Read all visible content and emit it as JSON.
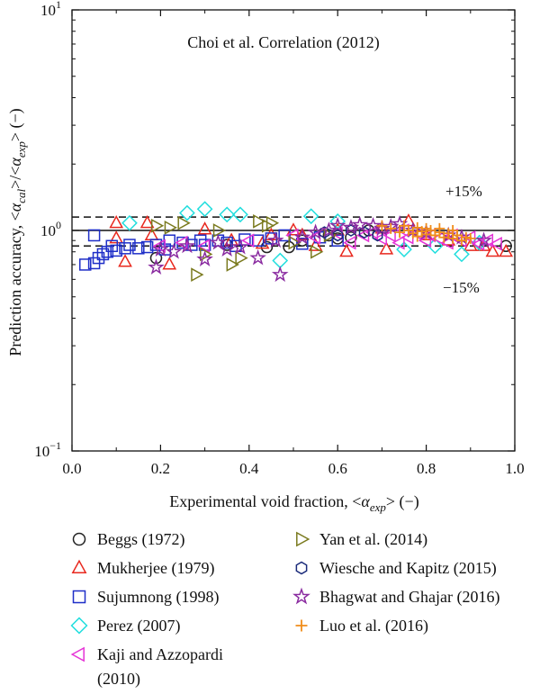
{
  "chart_data": {
    "type": "scatter",
    "title": "Choi et al. Correlation (2012)",
    "xlabel": {
      "main": "Experimental void fraction, <",
      "alpha": "α",
      "sub": "exp",
      "tail": "> (−)"
    },
    "ylabel": {
      "main": "Prediction accuracy, <",
      "alpha": "α",
      "sub1": "cal",
      "mid": ">/<",
      "sub2": "exp",
      "tail": "> (−)"
    },
    "x_range": [
      0,
      1
    ],
    "y_range": [
      0.1,
      10
    ],
    "y_scale": "log",
    "x_ticks": [
      "0.0",
      "0.2",
      "0.4",
      "0.6",
      "0.8",
      "1.0"
    ],
    "y_ticks": [
      {
        "base": "10",
        "exp": "−1",
        "value": 0.1
      },
      {
        "base": "10",
        "exp": "0",
        "value": 1
      },
      {
        "base": "10",
        "exp": "1",
        "value": 10
      }
    ],
    "reference_lines": [
      {
        "value": 1.0,
        "style": "solid"
      },
      {
        "value": 1.15,
        "style": "dashed",
        "label": "+15%"
      },
      {
        "value": 0.85,
        "style": "dashed",
        "label": "−15%"
      }
    ],
    "legend_placement": "below",
    "series": [
      {
        "name": "Beggs (1972)",
        "marker": "circle",
        "color": "#222222",
        "points": [
          [
            0.19,
            0.75
          ],
          [
            0.35,
            0.86
          ],
          [
            0.44,
            0.84
          ],
          [
            0.49,
            0.84
          ],
          [
            0.52,
            0.9
          ],
          [
            0.58,
            0.95
          ],
          [
            0.6,
            0.92
          ],
          [
            0.63,
            0.93
          ],
          [
            0.67,
            1.0
          ],
          [
            0.98,
            0.85
          ]
        ]
      },
      {
        "name": "Mukherjee (1979)",
        "marker": "triangle-up",
        "color": "#e8281e",
        "points": [
          [
            0.1,
            1.08
          ],
          [
            0.1,
            0.92
          ],
          [
            0.12,
            0.72
          ],
          [
            0.17,
            1.08
          ],
          [
            0.18,
            0.95
          ],
          [
            0.22,
            0.7
          ],
          [
            0.3,
            1.01
          ],
          [
            0.36,
            0.9
          ],
          [
            0.43,
            0.87
          ],
          [
            0.45,
            0.95
          ],
          [
            0.5,
            1.0
          ],
          [
            0.52,
            0.95
          ],
          [
            0.55,
            0.85
          ],
          [
            0.6,
            1.0
          ],
          [
            0.62,
            0.8
          ],
          [
            0.7,
            1.02
          ],
          [
            0.71,
            0.82
          ],
          [
            0.76,
            1.1
          ],
          [
            0.8,
            0.95
          ],
          [
            0.85,
            0.9
          ],
          [
            0.9,
            0.85
          ],
          [
            0.93,
            0.85
          ],
          [
            0.95,
            0.8
          ],
          [
            0.98,
            0.8
          ]
        ]
      },
      {
        "name": "Sujumnong (1998)",
        "marker": "square",
        "color": "#1f2fc8",
        "points": [
          [
            0.03,
            0.7
          ],
          [
            0.05,
            0.71
          ],
          [
            0.06,
            0.75
          ],
          [
            0.07,
            0.78
          ],
          [
            0.08,
            0.8
          ],
          [
            0.09,
            0.85
          ],
          [
            0.1,
            0.81
          ],
          [
            0.12,
            0.83
          ],
          [
            0.13,
            0.86
          ],
          [
            0.15,
            0.83
          ],
          [
            0.17,
            0.84
          ],
          [
            0.19,
            0.86
          ],
          [
            0.21,
            0.82
          ],
          [
            0.22,
            0.9
          ],
          [
            0.25,
            0.88
          ],
          [
            0.27,
            0.86
          ],
          [
            0.29,
            0.9
          ],
          [
            0.3,
            0.86
          ],
          [
            0.33,
            0.9
          ],
          [
            0.35,
            0.88
          ],
          [
            0.37,
            0.85
          ],
          [
            0.39,
            0.91
          ],
          [
            0.42,
            0.9
          ],
          [
            0.45,
            0.92
          ],
          [
            0.48,
            0.95
          ],
          [
            0.52,
            0.87
          ],
          [
            0.56,
            0.93
          ],
          [
            0.6,
            0.9
          ],
          [
            0.05,
            0.95
          ]
        ]
      },
      {
        "name": "Perez (2007)",
        "marker": "diamond",
        "color": "#22dede",
        "points": [
          [
            0.13,
            1.08
          ],
          [
            0.26,
            1.2
          ],
          [
            0.3,
            1.25
          ],
          [
            0.35,
            1.18
          ],
          [
            0.38,
            1.18
          ],
          [
            0.47,
            0.73
          ],
          [
            0.54,
            1.16
          ],
          [
            0.6,
            1.1
          ],
          [
            0.75,
            0.82
          ],
          [
            0.82,
            0.85
          ],
          [
            0.88,
            0.78
          ],
          [
            0.92,
            0.88
          ]
        ]
      },
      {
        "name": "Kaji and Azzopardi (2010)",
        "marker": "triangle-left",
        "color": "#e533d6",
        "points": [
          [
            0.2,
            0.85
          ],
          [
            0.25,
            0.88
          ],
          [
            0.3,
            0.85
          ],
          [
            0.4,
            0.9
          ],
          [
            0.5,
            0.95
          ],
          [
            0.55,
            0.93
          ],
          [
            0.6,
            0.97
          ],
          [
            0.63,
            0.88
          ],
          [
            0.66,
            0.95
          ],
          [
            0.68,
            0.98
          ],
          [
            0.7,
            0.92
          ],
          [
            0.72,
            0.95
          ],
          [
            0.74,
            0.88
          ],
          [
            0.75,
            1.0
          ],
          [
            0.76,
            0.93
          ],
          [
            0.78,
            0.97
          ],
          [
            0.8,
            0.9
          ],
          [
            0.81,
            0.95
          ],
          [
            0.83,
            0.92
          ],
          [
            0.85,
            0.88
          ],
          [
            0.86,
            0.95
          ],
          [
            0.88,
            0.9
          ],
          [
            0.9,
            0.93
          ],
          [
            0.92,
            0.87
          ],
          [
            0.94,
            0.9
          ],
          [
            0.96,
            0.87
          ]
        ]
      },
      {
        "name": "Yan et al. (2014)",
        "marker": "triangle-right",
        "color": "#7a7a1e",
        "points": [
          [
            0.19,
            1.05
          ],
          [
            0.22,
            1.03
          ],
          [
            0.25,
            1.08
          ],
          [
            0.28,
            0.63
          ],
          [
            0.3,
            0.78
          ],
          [
            0.33,
            1.0
          ],
          [
            0.36,
            0.7
          ],
          [
            0.38,
            0.75
          ],
          [
            0.42,
            1.1
          ],
          [
            0.44,
            1.05
          ],
          [
            0.45,
            1.08
          ],
          [
            0.5,
            0.88
          ],
          [
            0.55,
            0.8
          ],
          [
            0.58,
            0.95
          ]
        ]
      },
      {
        "name": "Wiesche and Kapitz (2015)",
        "marker": "hexagon",
        "color": "#1a2a7a",
        "points": [
          [
            0.57,
            0.98
          ],
          [
            0.6,
            0.95
          ],
          [
            0.63,
            1.0
          ],
          [
            0.66,
            0.98
          ],
          [
            0.69,
            0.95
          ]
        ]
      },
      {
        "name": "Bhagwat and Ghajar (2016)",
        "marker": "star",
        "color": "#8a2ba0",
        "points": [
          [
            0.19,
            0.68
          ],
          [
            0.2,
            0.82
          ],
          [
            0.23,
            0.8
          ],
          [
            0.26,
            0.85
          ],
          [
            0.3,
            0.74
          ],
          [
            0.33,
            0.88
          ],
          [
            0.35,
            0.82
          ],
          [
            0.38,
            0.84
          ],
          [
            0.42,
            0.75
          ],
          [
            0.46,
            0.9
          ],
          [
            0.47,
            0.63
          ],
          [
            0.52,
            0.93
          ],
          [
            0.55,
            0.98
          ],
          [
            0.58,
            1.0
          ],
          [
            0.6,
            1.05
          ],
          [
            0.63,
            1.03
          ],
          [
            0.65,
            1.06
          ],
          [
            0.68,
            1.05
          ],
          [
            0.7,
            1.02
          ],
          [
            0.72,
            1.04
          ],
          [
            0.74,
            1.07
          ],
          [
            0.77,
            1.0
          ],
          [
            0.8,
            0.98
          ],
          [
            0.85,
            0.95
          ],
          [
            0.88,
            0.93
          ],
          [
            0.93,
            0.9
          ]
        ]
      },
      {
        "name": "Luo et al. (2016)",
        "marker": "plus",
        "color": "#f08c1a",
        "points": [
          [
            0.7,
            1.05
          ],
          [
            0.72,
            1.02
          ],
          [
            0.74,
            0.98
          ],
          [
            0.75,
            1.05
          ],
          [
            0.76,
            1.0
          ],
          [
            0.77,
            0.97
          ],
          [
            0.78,
            1.03
          ],
          [
            0.79,
            0.99
          ],
          [
            0.8,
            0.96
          ],
          [
            0.81,
            1.0
          ],
          [
            0.82,
            0.95
          ],
          [
            0.83,
            0.98
          ],
          [
            0.84,
            0.93
          ],
          [
            0.85,
            0.97
          ],
          [
            0.86,
            0.92
          ],
          [
            0.87,
            0.95
          ],
          [
            0.88,
            0.9
          ],
          [
            0.89,
            0.93
          ],
          [
            0.9,
            0.92
          ],
          [
            0.78,
            0.94
          ],
          [
            0.8,
            1.02
          ],
          [
            0.83,
            1.02
          ],
          [
            0.86,
            1.0
          ]
        ]
      }
    ]
  }
}
